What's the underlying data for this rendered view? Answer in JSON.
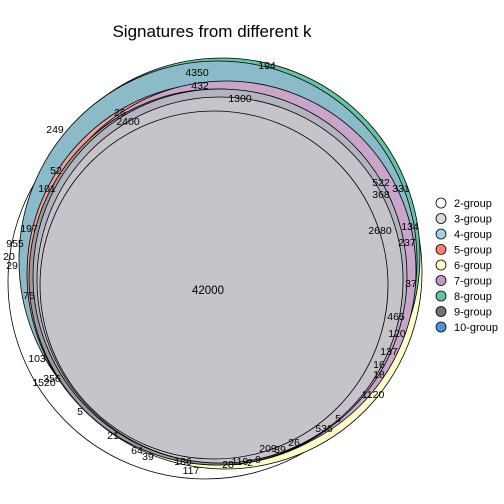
{
  "chart_data": {
    "type": "venn",
    "title": "Signatures from different k",
    "legend_position": "right",
    "legend": [
      {
        "name": "2-group",
        "color": "#ffffff"
      },
      {
        "name": "3-group",
        "color": "#d9d9d9"
      },
      {
        "name": "4-group",
        "color": "#a6cee3"
      },
      {
        "name": "5-group",
        "color": "#fb8072"
      },
      {
        "name": "6-group",
        "color": "#ffffcc"
      },
      {
        "name": "7-group",
        "color": "#c994c7"
      },
      {
        "name": "8-group",
        "color": "#66c2a4"
      },
      {
        "name": "9-group",
        "color": "#737373"
      },
      {
        "name": "10-group",
        "color": "#4e96d6"
      }
    ],
    "center_value": "42000",
    "region_labels": [
      "4350",
      "194",
      "432",
      "1300",
      "26",
      "2400",
      "249",
      "52",
      "101",
      "197",
      "955",
      "20",
      "29",
      "75",
      "522",
      "331",
      "368",
      "134",
      "2680",
      "237",
      "37",
      "465",
      "120",
      "137",
      "16",
      "18",
      "1120",
      "103",
      "1520",
      "356",
      "5",
      "21",
      "64",
      "39",
      "186",
      "117",
      "119",
      "28",
      "2",
      "9",
      "209",
      "39",
      "26",
      "536",
      "5"
    ]
  }
}
